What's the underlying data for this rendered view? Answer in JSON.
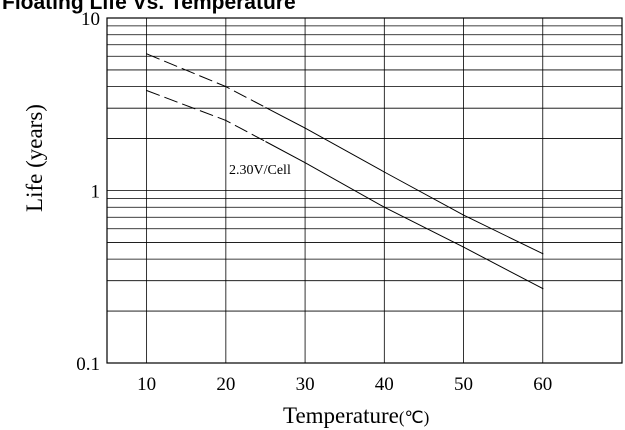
{
  "chart_data": {
    "type": "line",
    "title": "Floating Life Vs. Temperature",
    "xlabel": "Temperature",
    "xlabel_unit": "(℃)",
    "ylabel": "Life (years)",
    "xlim": [
      5,
      70
    ],
    "ylim": [
      0.1,
      10
    ],
    "yscale": "log",
    "grid": true,
    "x_ticks": [
      "10",
      "20",
      "30",
      "40",
      "50",
      "60"
    ],
    "y_ticks": [
      "0.1",
      "1",
      "10"
    ],
    "annotation": "2.30V/Cell",
    "series": [
      {
        "x": [
          10,
          20,
          30,
          40,
          50,
          60
        ],
        "y": [
          6.2,
          4.0,
          2.3,
          1.28,
          0.72,
          0.43
        ],
        "dashed_until_x": 25
      },
      {
        "x": [
          10,
          20,
          30,
          40,
          50,
          60
        ],
        "y": [
          3.8,
          2.55,
          1.45,
          0.8,
          0.47,
          0.27
        ],
        "dashed_until_x": 25
      }
    ]
  }
}
